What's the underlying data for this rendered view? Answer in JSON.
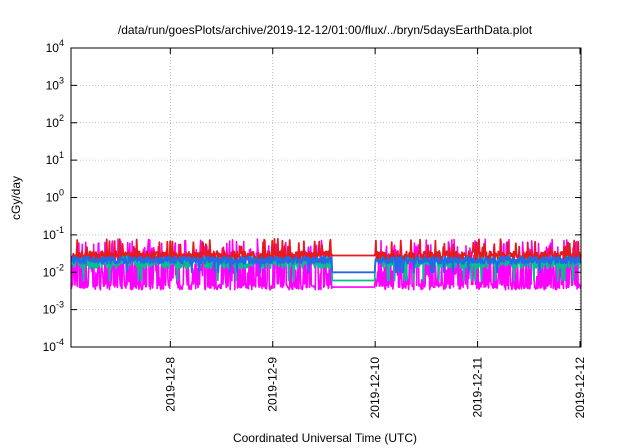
{
  "chart_data": {
    "type": "line",
    "title": "/data/run/goesPlots/archive/2019-12-12/01:00/flux/../bryn/5daysEarthData.plot",
    "xlabel": "Coordinated Universal Time (UTC)",
    "ylabel": "cGy/day",
    "yscale": "log",
    "ylim": [
      0.0001,
      10000
    ],
    "xlim": [
      0,
      4.98
    ],
    "y_ticks": [
      {
        "value": 0.0001,
        "base": "10",
        "exp": "-4"
      },
      {
        "value": 0.001,
        "base": "10",
        "exp": "-3"
      },
      {
        "value": 0.01,
        "base": "10",
        "exp": "-2"
      },
      {
        "value": 0.1,
        "base": "10",
        "exp": "-1"
      },
      {
        "value": 1,
        "base": "10",
        "exp": "0"
      },
      {
        "value": 10,
        "base": "10",
        "exp": "1"
      },
      {
        "value": 100,
        "base": "10",
        "exp": "2"
      },
      {
        "value": 1000,
        "base": "10",
        "exp": "3"
      },
      {
        "value": 10000,
        "base": "10",
        "exp": "4"
      }
    ],
    "x_ticks": [
      {
        "value": 0.97,
        "label": "2019-12-8"
      },
      {
        "value": 1.97,
        "label": "2019-12-9"
      },
      {
        "value": 2.97,
        "label": "2019-12-10"
      },
      {
        "value": 3.97,
        "label": "2019-12-11"
      },
      {
        "value": 4.97,
        "label": "2019-12-12"
      }
    ],
    "grid": true,
    "series": [
      {
        "color": "#e41a1c",
        "center": 0.028,
        "spread": 0.12,
        "spike": 0.065
      },
      {
        "color": "#00c090",
        "center": 0.019,
        "spread": 0.18,
        "dip": 0.006
      },
      {
        "color": "#2468e8",
        "center": 0.021,
        "spread": 0.1,
        "dip": 0.01
      },
      {
        "color": "#ff00ff",
        "center": 0.009,
        "spread": 0.45,
        "low": 0.004
      }
    ],
    "gap": [
      2.55,
      2.97
    ]
  }
}
